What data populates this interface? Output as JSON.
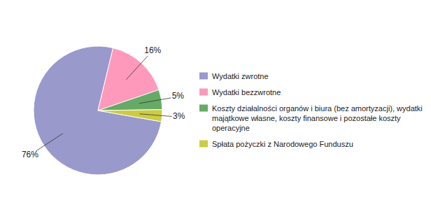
{
  "chart_data": {
    "type": "pie",
    "categories": [
      "Wydatki zwrotne",
      "Wydatki bezzwrotne",
      "Koszty działalności organów i biura (bez amortyzacji), wydatki majątkowe własne, koszty finansowe i pozostałe koszty operacyjne",
      "Spłata pożyczki z Narodowego Funduszu"
    ],
    "values": [
      76,
      16,
      5,
      3
    ],
    "value_labels": [
      "76%",
      "16%",
      "5%",
      "3%"
    ],
    "data_labels": true,
    "colors": [
      "#9999cc",
      "#ff99bb",
      "#66aa66",
      "#cccc44"
    ],
    "legend": "right"
  }
}
